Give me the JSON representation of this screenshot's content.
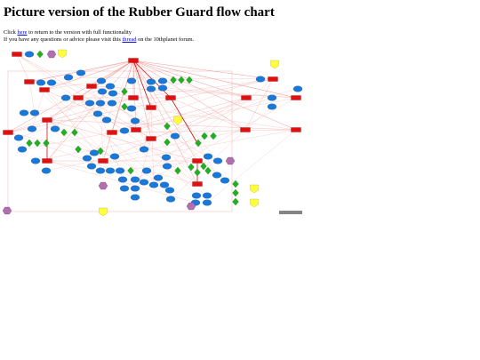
{
  "header": {
    "title": "Picture version of the Rubber Guard flow chart"
  },
  "intro": {
    "line1_before": "Click",
    "link1": "here",
    "line1_after": "to return to the version with full functionality",
    "line2_before": "If you have any questions or advice please visit this",
    "link2": "thread",
    "line2_after": "on the 10thplanet forum."
  }
}
